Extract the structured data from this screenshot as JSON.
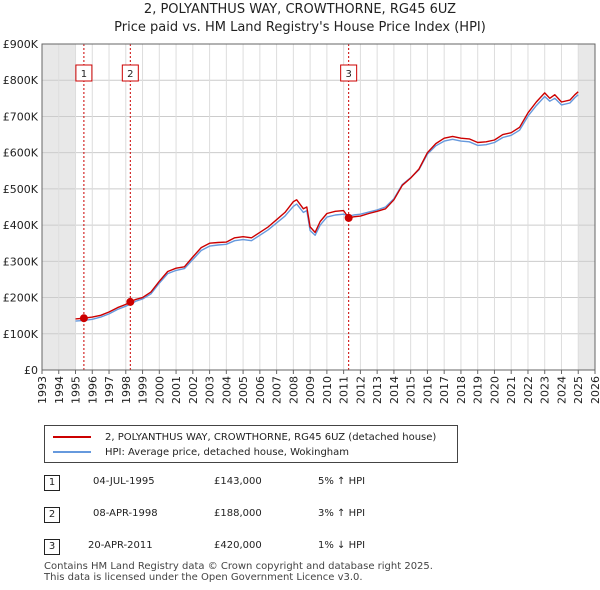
{
  "header": {
    "title_line1": "2, POLYANTHUS WAY, CROWTHORNE, RG45 6UZ",
    "title_line2": "Price paid vs. HM Land Registry's House Price Index (HPI)"
  },
  "chart_data": {
    "type": "line",
    "title": "2, POLYANTHUS WAY, CROWTHORNE, RG45 6UZ — Price paid vs. HM Land Registry's House Price Index (HPI)",
    "xlabel": "",
    "ylabel": "",
    "xlim": [
      1993,
      2026
    ],
    "ylim": [
      0,
      900000
    ],
    "x_ticks": [
      "1993",
      "1994",
      "1995",
      "1996",
      "1997",
      "1998",
      "1999",
      "2000",
      "2001",
      "2002",
      "2003",
      "2004",
      "2005",
      "2006",
      "2007",
      "2008",
      "2009",
      "2010",
      "2011",
      "2012",
      "2013",
      "2014",
      "2015",
      "2016",
      "2017",
      "2018",
      "2019",
      "2020",
      "2021",
      "2022",
      "2023",
      "2024",
      "2025",
      "2026"
    ],
    "y_ticks": [
      {
        "value": 0,
        "label": "£0"
      },
      {
        "value": 100000,
        "label": "£100K"
      },
      {
        "value": 200000,
        "label": "£200K"
      },
      {
        "value": 300000,
        "label": "£300K"
      },
      {
        "value": 400000,
        "label": "£400K"
      },
      {
        "value": 500000,
        "label": "£500K"
      },
      {
        "value": 600000,
        "label": "£600K"
      },
      {
        "value": 700000,
        "label": "£700K"
      },
      {
        "value": 800000,
        "label": "£800K"
      },
      {
        "value": 900000,
        "label": "£900K"
      }
    ],
    "shaded_ranges": [
      [
        1993,
        1995.0
      ],
      [
        2025.0,
        2026
      ]
    ],
    "series": [
      {
        "name": "2, POLYANTHUS WAY, CROWTHORNE, RG45 6UZ (detached house)",
        "color": "#cc0000",
        "points": [
          [
            1995.0,
            141000
          ],
          [
            1995.5,
            143000
          ],
          [
            1996.0,
            146000
          ],
          [
            1996.5,
            151000
          ],
          [
            1997.0,
            160000
          ],
          [
            1997.5,
            172000
          ],
          [
            1998.0,
            181000
          ],
          [
            1998.27,
            188000
          ],
          [
            1998.6,
            195000
          ],
          [
            1999.0,
            200000
          ],
          [
            1999.5,
            215000
          ],
          [
            2000.0,
            245000
          ],
          [
            2000.5,
            272000
          ],
          [
            2001.0,
            281000
          ],
          [
            2001.5,
            285000
          ],
          [
            2002.0,
            312000
          ],
          [
            2002.5,
            338000
          ],
          [
            2003.0,
            350000
          ],
          [
            2003.5,
            352000
          ],
          [
            2004.0,
            353000
          ],
          [
            2004.5,
            365000
          ],
          [
            2005.0,
            368000
          ],
          [
            2005.5,
            365000
          ],
          [
            2006.0,
            380000
          ],
          [
            2006.5,
            395000
          ],
          [
            2007.0,
            415000
          ],
          [
            2007.5,
            435000
          ],
          [
            2008.0,
            465000
          ],
          [
            2008.2,
            470000
          ],
          [
            2008.6,
            445000
          ],
          [
            2008.8,
            450000
          ],
          [
            2009.0,
            395000
          ],
          [
            2009.3,
            380000
          ],
          [
            2009.6,
            410000
          ],
          [
            2010.0,
            432000
          ],
          [
            2010.5,
            438000
          ],
          [
            2011.0,
            440000
          ],
          [
            2011.3,
            420000
          ],
          [
            2011.6,
            423000
          ],
          [
            2012.0,
            425000
          ],
          [
            2012.5,
            432000
          ],
          [
            2013.0,
            438000
          ],
          [
            2013.5,
            445000
          ],
          [
            2014.0,
            470000
          ],
          [
            2014.5,
            510000
          ],
          [
            2015.0,
            530000
          ],
          [
            2015.5,
            555000
          ],
          [
            2016.0,
            600000
          ],
          [
            2016.5,
            625000
          ],
          [
            2017.0,
            640000
          ],
          [
            2017.5,
            645000
          ],
          [
            2018.0,
            640000
          ],
          [
            2018.5,
            638000
          ],
          [
            2019.0,
            628000
          ],
          [
            2019.5,
            630000
          ],
          [
            2020.0,
            635000
          ],
          [
            2020.5,
            650000
          ],
          [
            2021.0,
            655000
          ],
          [
            2021.5,
            670000
          ],
          [
            2022.0,
            710000
          ],
          [
            2022.5,
            740000
          ],
          [
            2023.0,
            765000
          ],
          [
            2023.3,
            750000
          ],
          [
            2023.6,
            760000
          ],
          [
            2024.0,
            740000
          ],
          [
            2024.5,
            745000
          ],
          [
            2024.8,
            760000
          ],
          [
            2025.0,
            768000
          ]
        ]
      },
      {
        "name": "HPI: Average price, detached house, Wokingham",
        "color": "#6699dd",
        "points": [
          [
            1995.0,
            135000
          ],
          [
            1995.5,
            137000
          ],
          [
            1996.0,
            140000
          ],
          [
            1996.5,
            146000
          ],
          [
            1997.0,
            155000
          ],
          [
            1997.5,
            167000
          ],
          [
            1998.0,
            176000
          ],
          [
            1998.27,
            182000
          ],
          [
            1998.6,
            190000
          ],
          [
            1999.0,
            196000
          ],
          [
            1999.5,
            210000
          ],
          [
            2000.0,
            240000
          ],
          [
            2000.5,
            266000
          ],
          [
            2001.0,
            275000
          ],
          [
            2001.5,
            280000
          ],
          [
            2002.0,
            305000
          ],
          [
            2002.5,
            330000
          ],
          [
            2003.0,
            342000
          ],
          [
            2003.5,
            345000
          ],
          [
            2004.0,
            347000
          ],
          [
            2004.5,
            357000
          ],
          [
            2005.0,
            360000
          ],
          [
            2005.5,
            357000
          ],
          [
            2006.0,
            372000
          ],
          [
            2006.5,
            387000
          ],
          [
            2007.0,
            406000
          ],
          [
            2007.5,
            425000
          ],
          [
            2008.0,
            452000
          ],
          [
            2008.2,
            458000
          ],
          [
            2008.6,
            435000
          ],
          [
            2008.8,
            440000
          ],
          [
            2009.0,
            385000
          ],
          [
            2009.3,
            372000
          ],
          [
            2009.6,
            400000
          ],
          [
            2010.0,
            422000
          ],
          [
            2010.5,
            428000
          ],
          [
            2011.0,
            430000
          ],
          [
            2011.3,
            425000
          ],
          [
            2011.6,
            428000
          ],
          [
            2012.0,
            430000
          ],
          [
            2012.5,
            436000
          ],
          [
            2013.0,
            442000
          ],
          [
            2013.5,
            450000
          ],
          [
            2014.0,
            473000
          ],
          [
            2014.5,
            512000
          ],
          [
            2015.0,
            531000
          ],
          [
            2015.5,
            553000
          ],
          [
            2016.0,
            596000
          ],
          [
            2016.5,
            619000
          ],
          [
            2017.0,
            632000
          ],
          [
            2017.5,
            637000
          ],
          [
            2018.0,
            632000
          ],
          [
            2018.5,
            630000
          ],
          [
            2019.0,
            620000
          ],
          [
            2019.5,
            622000
          ],
          [
            2020.0,
            628000
          ],
          [
            2020.5,
            642000
          ],
          [
            2021.0,
            648000
          ],
          [
            2021.5,
            662000
          ],
          [
            2022.0,
            701000
          ],
          [
            2022.5,
            730000
          ],
          [
            2023.0,
            755000
          ],
          [
            2023.3,
            742000
          ],
          [
            2023.6,
            750000
          ],
          [
            2024.0,
            732000
          ],
          [
            2024.5,
            737000
          ],
          [
            2024.8,
            752000
          ],
          [
            2025.0,
            760000
          ]
        ]
      }
    ],
    "sales": [
      {
        "label": "1",
        "x": 1995.5,
        "value": 143000
      },
      {
        "label": "2",
        "x": 1998.27,
        "value": 188000
      },
      {
        "label": "3",
        "x": 2011.3,
        "value": 420000
      }
    ],
    "legend": [
      {
        "label": "2, POLYANTHUS WAY, CROWTHORNE, RG45 6UZ (detached house)",
        "color": "#cc0000"
      },
      {
        "label": "HPI: Average price, detached house, Wokingham",
        "color": "#6699dd"
      }
    ],
    "legend_position": "below"
  },
  "transactions": [
    {
      "num": "1",
      "date": "04-JUL-1995",
      "price": "£143,000",
      "hpi": "5% ↑ HPI"
    },
    {
      "num": "2",
      "date": "08-APR-1998",
      "price": "£188,000",
      "hpi": "3% ↑ HPI"
    },
    {
      "num": "3",
      "date": "20-APR-2011",
      "price": "£420,000",
      "hpi": "1% ↓ HPI"
    }
  ],
  "footer": {
    "line1": "Contains HM Land Registry data © Crown copyright and database right 2025.",
    "line2": "This data is licensed under the Open Government Licence v3.0."
  }
}
